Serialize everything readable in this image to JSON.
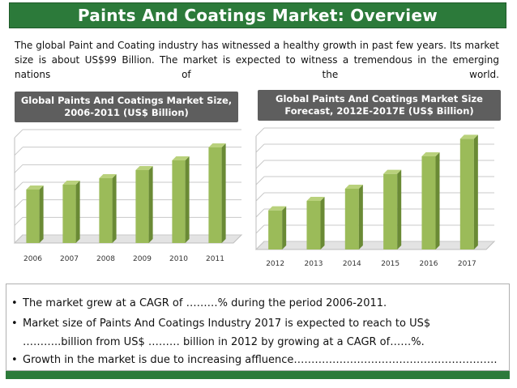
{
  "header": {
    "title": "Paints And Coatings Market: Overview"
  },
  "intro_text": "The global Paint and Coating industry has witnessed a healthy growth in past few years. Its market size is about US$99 Billion. The market is expected to witness a tremendous in the emerging nations of the world.",
  "colors": {
    "banner": "#2c7a3a",
    "bar_front": "#9bbb59",
    "bar_side": "#6a8a35",
    "bar_top": "#b9d17c",
    "title_box": "#5e5e5e"
  },
  "chart_data": [
    {
      "type": "bar",
      "title": "Global Paints And Coatings Market Size, 2006-2011 (US$ Billion)",
      "title_lines": [
        "Global Paints And Coatings Market Size,",
        "2006-2011 (US$ Billion)"
      ],
      "categories": [
        "2006",
        "2007",
        "2008",
        "2009",
        "2010",
        "2011"
      ],
      "values": [
        3.3,
        3.6,
        4.0,
        4.5,
        5.1,
        5.9
      ],
      "ylim": [
        0,
        7
      ],
      "grid": true,
      "ytick_labels_shown": false
    },
    {
      "type": "bar",
      "title": "Global Paints And Coatings Market Size Forecast, 2012E-2017E (US$ Billion)",
      "title_lines": [
        "Global Paints And Coatings Market Size",
        "Forecast, 2012E-2017E (US$ Billion)"
      ],
      "categories": [
        "2012",
        "2013",
        "2014",
        "2015",
        "2016",
        "2017"
      ],
      "values": [
        2.9,
        3.6,
        4.5,
        5.6,
        6.9,
        8.2
      ],
      "ylim": [
        0,
        9
      ],
      "grid": true,
      "ytick_labels_shown": false
    }
  ],
  "bullets": [
    {
      "marker": "•",
      "text": "The market grew at a CAGR of ………% during the period 2006-2011."
    },
    {
      "marker": "•",
      "text": "Market size of Paints And Coatings Industry 2017 is expected to reach to US$"
    },
    {
      "marker": "",
      "text": "………..billion from US$ ……… billion in 2012 by growing at a CAGR of……%."
    },
    {
      "marker": "•",
      "text": "Growth in the market is due to increasing affluence…………………………………………………."
    }
  ]
}
